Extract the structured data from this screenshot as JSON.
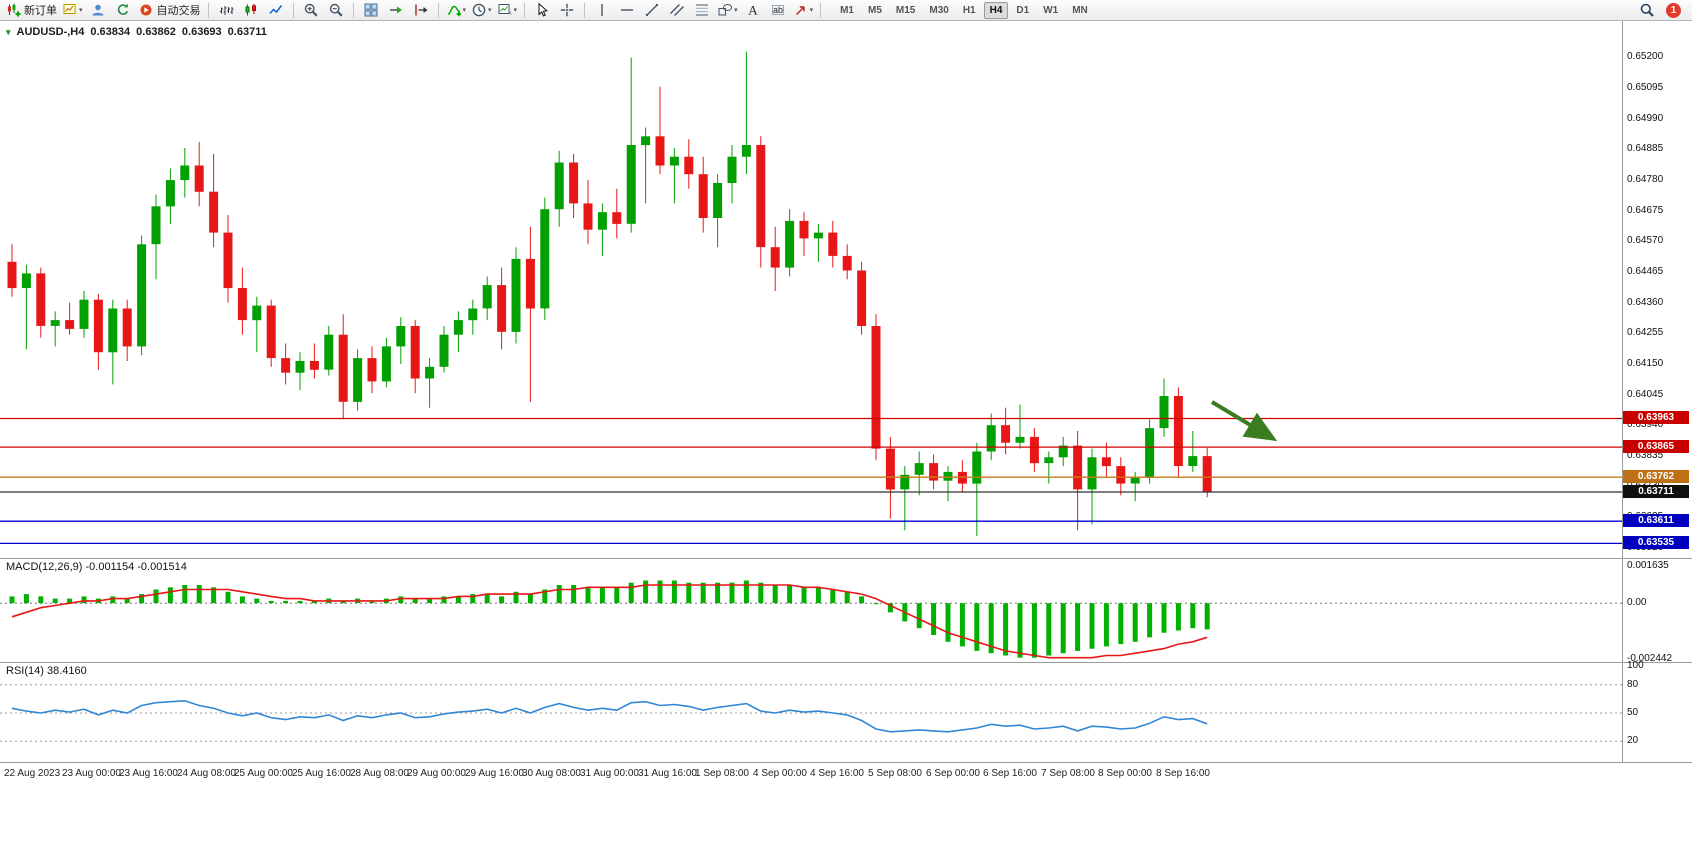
{
  "toolbar": {
    "new_order_label": "新订单",
    "auto_trading_label": "自动交易",
    "timeframes": [
      "M1",
      "M5",
      "M15",
      "M30",
      "H1",
      "H4",
      "D1",
      "W1",
      "MN"
    ],
    "active_timeframe": "H4",
    "notification_count": "1"
  },
  "chart_header": {
    "symbol": "AUDUSD-,H4",
    "open": "0.63834",
    "high": "0.63862",
    "low": "0.63693",
    "close": "0.63711"
  },
  "colors": {
    "bull": "#02A002",
    "bear": "#E81717",
    "macd_histogram": "#02B002",
    "macd_signal": "#E81717",
    "rsi_line": "#3187D6",
    "arrow": "#3A7D1E"
  },
  "chart_data": {
    "type": "candlestick",
    "symbol": "AUDUSD",
    "timeframe": "H4",
    "x_axis_labels": [
      "22 Aug 2023",
      "23 Aug 00:00",
      "23 Aug 16:00",
      "24 Aug 08:00",
      "25 Aug 00:00",
      "25 Aug 16:00",
      "28 Aug 08:00",
      "29 Aug 00:00",
      "29 Aug 16:00",
      "30 Aug 08:00",
      "31 Aug 00:00",
      "31 Aug 16:00",
      "1 Sep 08:00",
      "4 Sep 00:00",
      "4 Sep 16:00",
      "5 Sep 08:00",
      "6 Sep 00:00",
      "6 Sep 16:00",
      "7 Sep 08:00",
      "8 Sep 00:00",
      "8 Sep 16:00"
    ],
    "y_axis": {
      "min": 0.63485,
      "max": 0.65325,
      "tick_labels": [
        "0.65200",
        "0.65095",
        "0.64990",
        "0.64885",
        "0.64780",
        "0.64675",
        "0.64570",
        "0.64465",
        "0.64360",
        "0.64255",
        "0.64150",
        "0.64045",
        "0.63940",
        "0.63835",
        "0.63730",
        "0.63625",
        "0.63520"
      ]
    },
    "candles": [
      [
        0.645,
        0.6456,
        0.6438,
        0.6441
      ],
      [
        0.6441,
        0.6449,
        0.642,
        0.6446
      ],
      [
        0.6446,
        0.6448,
        0.6424,
        0.6428
      ],
      [
        0.6428,
        0.6433,
        0.6421,
        0.643
      ],
      [
        0.643,
        0.6436,
        0.6425,
        0.6427
      ],
      [
        0.6427,
        0.644,
        0.6424,
        0.6437
      ],
      [
        0.6437,
        0.6439,
        0.6413,
        0.6419
      ],
      [
        0.6419,
        0.6437,
        0.6408,
        0.6434
      ],
      [
        0.6434,
        0.6437,
        0.6416,
        0.6421
      ],
      [
        0.6421,
        0.6459,
        0.6418,
        0.6456
      ],
      [
        0.6456,
        0.6473,
        0.6444,
        0.6469
      ],
      [
        0.6469,
        0.6482,
        0.6463,
        0.6478
      ],
      [
        0.6478,
        0.6489,
        0.6472,
        0.6483
      ],
      [
        0.6483,
        0.6491,
        0.6469,
        0.6474
      ],
      [
        0.6474,
        0.6487,
        0.6455,
        0.646
      ],
      [
        0.646,
        0.6466,
        0.6436,
        0.6441
      ],
      [
        0.6441,
        0.6448,
        0.6425,
        0.643
      ],
      [
        0.643,
        0.6438,
        0.6419,
        0.6435
      ],
      [
        0.6435,
        0.6437,
        0.6414,
        0.6417
      ],
      [
        0.6417,
        0.6422,
        0.6408,
        0.6412
      ],
      [
        0.6412,
        0.6419,
        0.6406,
        0.6416
      ],
      [
        0.6416,
        0.6422,
        0.641,
        0.6413
      ],
      [
        0.6413,
        0.6428,
        0.6411,
        0.6425
      ],
      [
        0.6425,
        0.6432,
        0.6396,
        0.6402
      ],
      [
        0.6402,
        0.642,
        0.6399,
        0.6417
      ],
      [
        0.6417,
        0.6421,
        0.6405,
        0.6409
      ],
      [
        0.6409,
        0.6424,
        0.6407,
        0.6421
      ],
      [
        0.6421,
        0.6431,
        0.6415,
        0.6428
      ],
      [
        0.6428,
        0.643,
        0.6405,
        0.641
      ],
      [
        0.641,
        0.6417,
        0.64,
        0.6414
      ],
      [
        0.6414,
        0.6428,
        0.6412,
        0.6425
      ],
      [
        0.6425,
        0.6433,
        0.6419,
        0.643
      ],
      [
        0.643,
        0.6437,
        0.6425,
        0.6434
      ],
      [
        0.6434,
        0.6445,
        0.643,
        0.6442
      ],
      [
        0.6442,
        0.6448,
        0.642,
        0.6426
      ],
      [
        0.6426,
        0.6455,
        0.6422,
        0.6451
      ],
      [
        0.6451,
        0.6462,
        0.6402,
        0.6434
      ],
      [
        0.6434,
        0.6472,
        0.643,
        0.6468
      ],
      [
        0.6468,
        0.6488,
        0.6462,
        0.6484
      ],
      [
        0.6484,
        0.6487,
        0.6465,
        0.647
      ],
      [
        0.647,
        0.6478,
        0.6456,
        0.6461
      ],
      [
        0.6461,
        0.647,
        0.6452,
        0.6467
      ],
      [
        0.6467,
        0.6475,
        0.6458,
        0.6463
      ],
      [
        0.6463,
        0.652,
        0.646,
        0.649
      ],
      [
        0.649,
        0.6496,
        0.647,
        0.6493
      ],
      [
        0.6493,
        0.651,
        0.648,
        0.6483
      ],
      [
        0.6483,
        0.6489,
        0.647,
        0.6486
      ],
      [
        0.6486,
        0.6492,
        0.6475,
        0.648
      ],
      [
        0.648,
        0.6486,
        0.646,
        0.6465
      ],
      [
        0.6465,
        0.648,
        0.6455,
        0.6477
      ],
      [
        0.6477,
        0.649,
        0.647,
        0.6486
      ],
      [
        0.6486,
        0.6522,
        0.648,
        0.649
      ],
      [
        0.649,
        0.6493,
        0.6448,
        0.6455
      ],
      [
        0.6455,
        0.6462,
        0.644,
        0.6448
      ],
      [
        0.6448,
        0.6468,
        0.6445,
        0.6464
      ],
      [
        0.6464,
        0.6467,
        0.6452,
        0.6458
      ],
      [
        0.6458,
        0.6463,
        0.645,
        0.646
      ],
      [
        0.646,
        0.6464,
        0.6448,
        0.6452
      ],
      [
        0.6452,
        0.6456,
        0.6444,
        0.6447
      ],
      [
        0.6447,
        0.645,
        0.6425,
        0.6428
      ],
      [
        0.6428,
        0.6432,
        0.6382,
        0.6386
      ],
      [
        0.6386,
        0.639,
        0.6362,
        0.6372
      ],
      [
        0.6372,
        0.638,
        0.6358,
        0.6377
      ],
      [
        0.6377,
        0.6385,
        0.637,
        0.6381
      ],
      [
        0.6381,
        0.6384,
        0.6372,
        0.6375
      ],
      [
        0.6375,
        0.638,
        0.6368,
        0.6378
      ],
      [
        0.6378,
        0.6382,
        0.6371,
        0.6374
      ],
      [
        0.6374,
        0.6388,
        0.6356,
        0.6385
      ],
      [
        0.6385,
        0.6398,
        0.6382,
        0.6394
      ],
      [
        0.6394,
        0.64,
        0.6384,
        0.6388
      ],
      [
        0.6388,
        0.6401,
        0.6386,
        0.639
      ],
      [
        0.639,
        0.6393,
        0.6378,
        0.6381
      ],
      [
        0.6381,
        0.6385,
        0.6374,
        0.6383
      ],
      [
        0.6383,
        0.639,
        0.638,
        0.6387
      ],
      [
        0.6387,
        0.6392,
        0.6358,
        0.6372
      ],
      [
        0.6372,
        0.6386,
        0.636,
        0.6383
      ],
      [
        0.6383,
        0.6388,
        0.6376,
        0.638
      ],
      [
        0.638,
        0.6383,
        0.637,
        0.6374
      ],
      [
        0.6374,
        0.6378,
        0.6368,
        0.6376
      ],
      [
        0.6376,
        0.6396,
        0.6374,
        0.6393
      ],
      [
        0.6393,
        0.641,
        0.639,
        0.6404
      ],
      [
        0.6404,
        0.6407,
        0.6376,
        0.638
      ],
      [
        0.638,
        0.6392,
        0.6378,
        0.63834
      ],
      [
        0.63834,
        0.63862,
        0.63693,
        0.63711
      ]
    ],
    "horizontal_lines": [
      {
        "price": 0.63963,
        "color": "#D40000",
        "tag_bg": "#C80000"
      },
      {
        "price": 0.63865,
        "color": "#D40000",
        "tag_bg": "#C80000"
      },
      {
        "price": 0.63762,
        "color": "#C87818",
        "tag_bg": "#BE7014"
      },
      {
        "price": 0.63711,
        "color": "#303030",
        "tag_bg": "#101010"
      },
      {
        "price": 0.63611,
        "color": "#0000D4",
        "tag_bg": "#0000BE"
      },
      {
        "price": 0.63535,
        "color": "#0000D4",
        "tag_bg": "#0000BE"
      }
    ],
    "indicators": {
      "macd": {
        "label": "MACD(12,26,9)",
        "values_label": "-0.001154 -0.001514",
        "axis_labels": [
          "0.001635",
          "0.00",
          "-0.002442"
        ],
        "histogram": [
          0.0003,
          0.0004,
          0.0003,
          0.0002,
          0.0002,
          0.0003,
          0.0002,
          0.0003,
          0.0002,
          0.0004,
          0.0006,
          0.0007,
          0.0008,
          0.0008,
          0.0007,
          0.0005,
          0.0003,
          0.0002,
          0.0001,
          0.0001,
          0.0001,
          0.0001,
          0.0002,
          0.0001,
          0.0002,
          0.0001,
          0.0002,
          0.0003,
          0.0002,
          0.0002,
          0.0003,
          0.0003,
          0.0004,
          0.0004,
          0.0003,
          0.0005,
          0.0004,
          0.0006,
          0.0008,
          0.0008,
          0.0007,
          0.0007,
          0.0007,
          0.0009,
          0.001,
          0.001,
          0.001,
          0.0009,
          0.0009,
          0.0009,
          0.0009,
          0.001,
          0.0009,
          0.0008,
          0.0008,
          0.0007,
          0.0007,
          0.0006,
          0.0005,
          0.0003,
          0.0,
          -0.0004,
          -0.0008,
          -0.0011,
          -0.0014,
          -0.0017,
          -0.0019,
          -0.0021,
          -0.0022,
          -0.0023,
          -0.0024,
          -0.0024,
          -0.0023,
          -0.0022,
          -0.0021,
          -0.002,
          -0.0019,
          -0.0018,
          -0.0017,
          -0.0015,
          -0.0013,
          -0.0012,
          -0.0011,
          -0.001154
        ],
        "signal": [
          -0.0006,
          -0.0004,
          -0.0002,
          -0.0001,
          0.0,
          0.0001,
          0.0001,
          0.0002,
          0.0002,
          0.0003,
          0.0004,
          0.0005,
          0.0006,
          0.0006,
          0.0006,
          0.0006,
          0.0005,
          0.0004,
          0.0003,
          0.0002,
          0.0002,
          0.0001,
          0.0001,
          0.0001,
          0.0001,
          0.0001,
          0.0001,
          0.0002,
          0.0002,
          0.0002,
          0.0002,
          0.0003,
          0.0003,
          0.0004,
          0.0004,
          0.0004,
          0.0004,
          0.0005,
          0.0006,
          0.0006,
          0.0007,
          0.0007,
          0.0007,
          0.0007,
          0.0008,
          0.0008,
          0.0008,
          0.0008,
          0.0008,
          0.0008,
          0.0008,
          0.0008,
          0.0008,
          0.0008,
          0.0008,
          0.0007,
          0.0007,
          0.0006,
          0.0005,
          0.0004,
          0.0002,
          -0.0001,
          -0.0004,
          -0.0007,
          -0.001,
          -0.0013,
          -0.0015,
          -0.0017,
          -0.0019,
          -0.0021,
          -0.0022,
          -0.0023,
          -0.0024,
          -0.0024,
          -0.0024,
          -0.0024,
          -0.0023,
          -0.0023,
          -0.0022,
          -0.0021,
          -0.002,
          -0.0018,
          -0.0017,
          -0.0015
        ]
      },
      "rsi": {
        "label": "RSI(14)",
        "value_label": "38.4160",
        "levels": [
          80,
          50,
          20
        ],
        "axis_labels": [
          "100",
          "80",
          "50",
          "20"
        ],
        "values": [
          55,
          52,
          50,
          53,
          51,
          54,
          48,
          53,
          50,
          58,
          61,
          62,
          63,
          58,
          55,
          50,
          47,
          50,
          45,
          43,
          46,
          45,
          48,
          42,
          47,
          45,
          48,
          50,
          45,
          46,
          49,
          51,
          52,
          54,
          50,
          55,
          50,
          56,
          60,
          56,
          53,
          55,
          53,
          61,
          62,
          58,
          59,
          57,
          53,
          56,
          58,
          60,
          52,
          50,
          53,
          51,
          52,
          50,
          48,
          42,
          33,
          30,
          31,
          32,
          31,
          30,
          32,
          34,
          38,
          36,
          37,
          33,
          34,
          36,
          31,
          36,
          35,
          33,
          34,
          39,
          46,
          43,
          44,
          38.4
        ]
      }
    },
    "annotation": {
      "type": "arrow",
      "direction": "down-right",
      "color": "#3A7D1E"
    }
  }
}
